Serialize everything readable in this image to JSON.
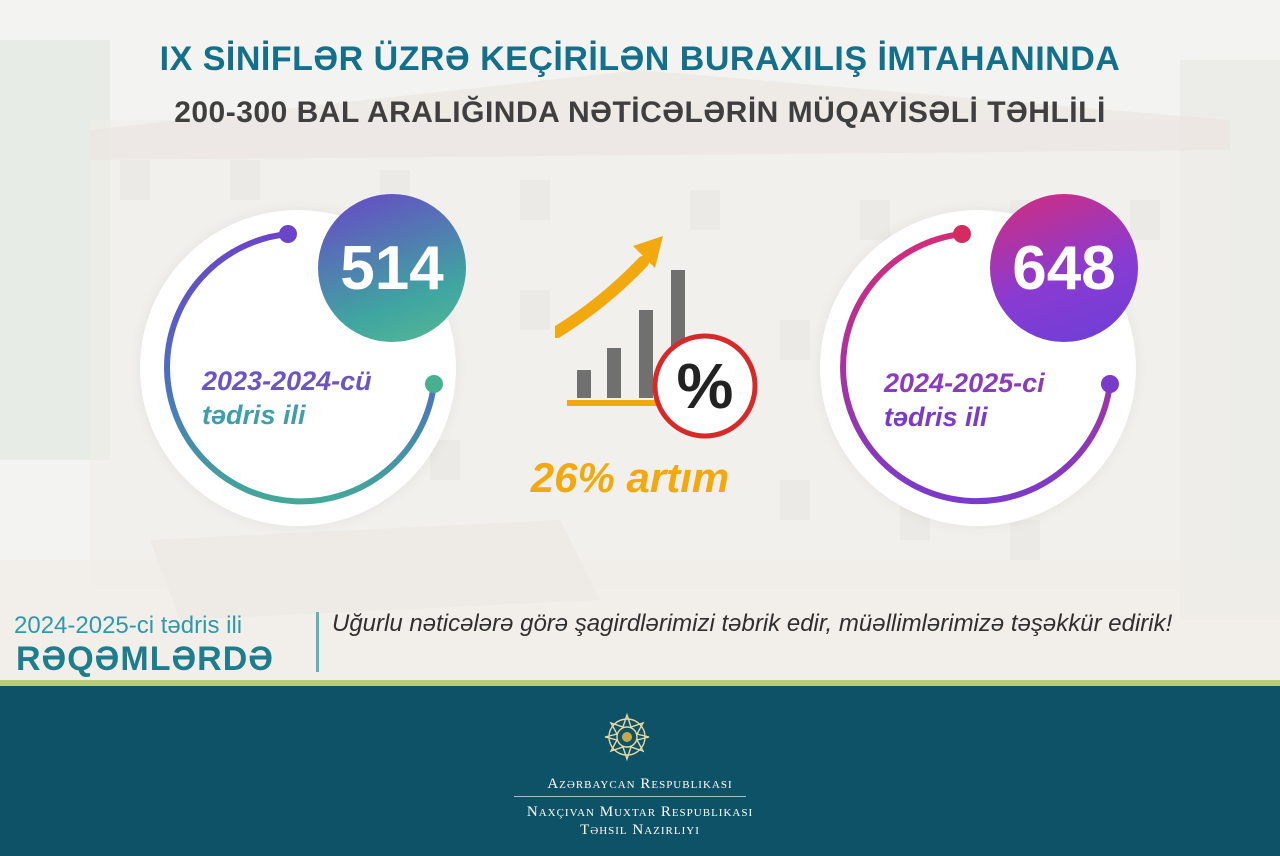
{
  "header": {
    "title_line1": "IX SİNİFLƏR ÜZRƏ KEÇİRİLƏN BURAXILIŞ İMTAHANINDA",
    "title_line2": "200-300 BAL ARALIĞINDA NƏTİCƏLƏRİN MÜQAYİSƏLİ TƏHLİLİ"
  },
  "left_card": {
    "value": "514",
    "year_line1": "2023-2024-cü",
    "year_line2": "tədris ili"
  },
  "right_card": {
    "value": "648",
    "year_line1": "2024-2025-ci",
    "year_line2": "tədris ili"
  },
  "growth": {
    "text": "26% artım",
    "percent_symbol": "%",
    "icon": "growth-chart-icon"
  },
  "footer": {
    "label_line1": "2024-2025-ci tədris ili",
    "label_line2": "RƏQƏMLƏRDƏ",
    "message": "Uğurlu nəticələrə görə şagirdlərimizi təbrik edir, müəllimlərimizə təşəkkür edirik!"
  },
  "ministry": {
    "line1": "Azərbaycan Respublikası",
    "line2": "Naxçıvan Muxtar Respublikası",
    "line3": "Təhsil Nazirliyi",
    "emblem_icon": "national-emblem-icon"
  },
  "colors": {
    "title_teal": "#14708a",
    "accent_orange": "#f2a90f",
    "band_teal": "#0d5267",
    "band_stripe": "#b7cf74"
  }
}
